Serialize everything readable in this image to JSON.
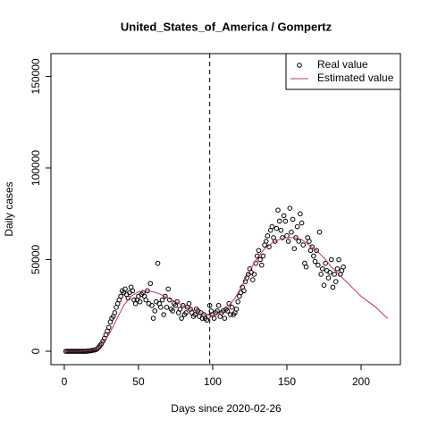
{
  "chart_data": {
    "type": "scatter",
    "title": "United_States_of_America / Gompertz",
    "x_label": "Days since 2020-02-26",
    "y_label": "Daily cases",
    "xlim": [
      -9,
      226.5
    ],
    "ylim": [
      -7300,
      162400
    ],
    "xticks": [
      0,
      50,
      100,
      150,
      200
    ],
    "yticks": [
      0,
      50000,
      100000,
      150000
    ],
    "vline": 98,
    "legend": "topright",
    "series": [
      {
        "name": "Real value",
        "type": "points",
        "color": "#000000",
        "x": [
          1,
          2,
          3,
          4,
          5,
          6,
          7,
          8,
          9,
          10,
          11,
          12,
          13,
          14,
          15,
          16,
          17,
          18,
          19,
          20,
          21,
          22,
          23,
          24,
          25,
          26,
          27,
          28,
          29,
          30,
          31,
          32,
          33,
          34,
          35,
          36,
          37,
          38,
          39,
          40,
          41,
          42,
          43,
          44,
          45,
          46,
          47,
          48,
          49,
          50,
          51,
          52,
          53,
          54,
          55,
          56,
          57,
          58,
          59,
          60,
          61,
          62,
          63,
          64,
          65,
          66,
          67,
          68,
          69,
          70,
          71,
          72,
          73,
          74,
          75,
          76,
          77,
          78,
          79,
          80,
          81,
          82,
          83,
          84,
          85,
          86,
          87,
          88,
          89,
          90,
          91,
          92,
          93,
          94,
          95,
          96,
          97,
          98,
          99,
          100,
          101,
          102,
          103,
          104,
          105,
          106,
          107,
          108,
          109,
          110,
          111,
          112,
          113,
          114,
          115,
          116,
          117,
          118,
          119,
          120,
          121,
          122,
          123,
          124,
          125,
          126,
          127,
          128,
          129,
          130,
          131,
          132,
          133,
          134,
          135,
          136,
          137,
          138,
          139,
          140,
          141,
          142,
          143,
          144,
          145,
          146,
          147,
          148,
          149,
          150,
          151,
          152,
          153,
          154,
          155,
          156,
          157,
          158,
          159,
          160,
          161,
          162,
          163,
          164,
          165,
          166,
          167,
          168,
          169,
          170,
          171,
          172,
          173,
          174,
          175,
          176,
          177,
          178,
          179,
          180,
          181,
          182,
          183,
          184,
          185,
          186,
          187,
          188
        ],
        "values": [
          0,
          0,
          0,
          0,
          0,
          0,
          0,
          0,
          0,
          0,
          0,
          0,
          0,
          0,
          0,
          100,
          200,
          300,
          500,
          600,
          800,
          1200,
          2000,
          3000,
          4000,
          5500,
          7000,
          9000,
          11000,
          13000,
          16000,
          18000,
          19000,
          21000,
          24000,
          26000,
          28000,
          30000,
          33000,
          32000,
          34000,
          31000,
          29000,
          32000,
          35000,
          33000,
          28000,
          26000,
          28000,
          30000,
          27000,
          31000,
          32000,
          30000,
          28000,
          33000,
          26000,
          37000,
          25000,
          18000,
          22000,
          27000,
          48000,
          26000,
          24000,
          28000,
          20000,
          30000,
          24000,
          34000,
          28000,
          23000,
          22000,
          26000,
          25000,
          27000,
          21000,
          23000,
          18000,
          25000,
          20000,
          21000,
          24000,
          26000,
          23000,
          21000,
          19000,
          20000,
          23000,
          22000,
          19000,
          21000,
          18000,
          20000,
          18000,
          17000,
          19000,
          25000,
          22000,
          20000,
          18000,
          21000,
          22000,
          25000,
          19000,
          21000,
          22000,
          18000,
          23000,
          22000,
          26000,
          20000,
          24000,
          20000,
          21000,
          23000,
          27000,
          30000,
          32000,
          35000,
          33000,
          38000,
          40000,
          42000,
          45000,
          43000,
          39000,
          42000,
          48000,
          52000,
          55000,
          50000,
          47000,
          52000,
          58000,
          60000,
          63000,
          57000,
          66000,
          68000,
          62000,
          60000,
          67000,
          77000,
          71000,
          66000,
          62000,
          74000,
          71000,
          63000,
          60000,
          78000,
          65000,
          72000,
          56000,
          62000,
          68000,
          60000,
          75000,
          70000,
          58000,
          48000,
          46000,
          62000,
          60000,
          55000,
          57000,
          52000,
          49000,
          55000,
          47000,
          65000,
          42000,
          45000,
          36000,
          48000,
          44000,
          40000,
          43000,
          50000,
          35000,
          42000,
          38000,
          45000,
          50000,
          42000,
          44000,
          46000
        ]
      },
      {
        "name": "Estimated value",
        "type": "line",
        "color": "#c0306a",
        "x": [
          1,
          10,
          15,
          20,
          25,
          30,
          35,
          40,
          45,
          50,
          55,
          60,
          65,
          70,
          75,
          80,
          85,
          90,
          95,
          100,
          105,
          110,
          115,
          120,
          125,
          130,
          135,
          140,
          145,
          150,
          155,
          160,
          165,
          170,
          175,
          180,
          185,
          190,
          195,
          200,
          205,
          210,
          215,
          218
        ],
        "values": [
          0,
          50,
          300,
          1000,
          3500,
          9000,
          17000,
          25000,
          30000,
          32500,
          33000,
          32500,
          31000,
          29000,
          27000,
          25000,
          23000,
          21500,
          20000,
          19500,
          21000,
          24000,
          29000,
          36000,
          44000,
          51000,
          56000,
          59000,
          61000,
          62000,
          62000,
          61000,
          58000,
          55000,
          51000,
          46000,
          42000,
          38000,
          34000,
          30000,
          27000,
          24000,
          20000,
          18000
        ]
      }
    ]
  }
}
